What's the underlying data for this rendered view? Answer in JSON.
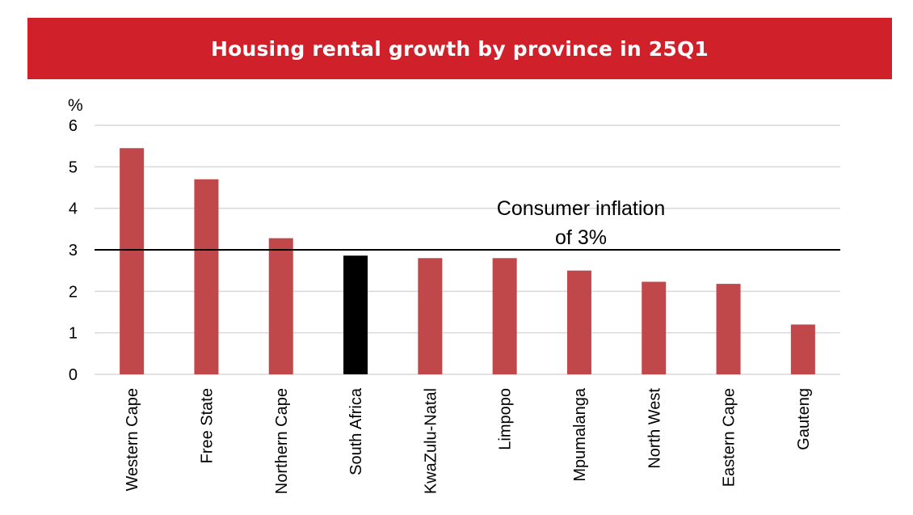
{
  "chart_data": {
    "type": "bar",
    "title": "Housing rental growth by province in 25Q1",
    "ylabel": "%",
    "xlabel": "",
    "ylim": [
      0,
      6
    ],
    "yticks": [
      0,
      1,
      2,
      3,
      4,
      5,
      6
    ],
    "grid": true,
    "categories": [
      "Western Cape",
      "Free State",
      "Northern Cape",
      "South Africa",
      "KwaZulu-Natal",
      "Limpopo",
      "Mpumalanga",
      "North West",
      "Eastern Cape",
      "Gauteng"
    ],
    "values": [
      5.45,
      4.7,
      3.28,
      2.86,
      2.8,
      2.8,
      2.5,
      2.23,
      2.18,
      1.2
    ],
    "highlight_category": "South Africa",
    "colors": {
      "bar": "#c0474a",
      "highlight": "#000000",
      "banner": "#d0212a",
      "grid": "#d9d9d9",
      "reference_line": "#000000"
    },
    "reference_line": {
      "value": 3,
      "label_line1": "Consumer inflation",
      "label_line2": "of 3%"
    }
  }
}
